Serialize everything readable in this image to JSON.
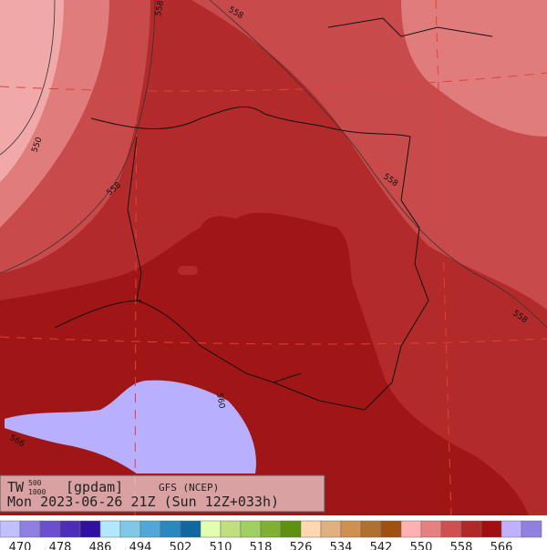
{
  "header": {
    "variable": "TW",
    "superscript": "500",
    "subscript": "1000",
    "unit": "[gpdam]",
    "model": "GFS (NCEP)",
    "time": "Mon 2023-06-26 21Z (Sun 12Z+033h)"
  },
  "contour_labels": [
    "558",
    "558",
    "558",
    "558",
    "558",
    "550",
    "566",
    "560"
  ],
  "colorbar": {
    "colors": [
      "#c0c0ff",
      "#8f7fe0",
      "#6a50d0",
      "#4e2db8",
      "#3010a0",
      "#b0e8ff",
      "#80c8e8",
      "#50a8d8",
      "#2888c0",
      "#1068a0",
      "#e0ffb0",
      "#c0e080",
      "#a0d060",
      "#80b030",
      "#609010",
      "#ffd8b0",
      "#e0b080",
      "#d09050",
      "#b07030",
      "#a05010",
      "#ffb0b0",
      "#e88080",
      "#d05050",
      "#b02828",
      "#a01010",
      "#c0b0ff",
      "#9080e0"
    ],
    "labels": [
      470,
      478,
      486,
      494,
      502,
      510,
      518,
      526,
      534,
      542,
      550,
      558,
      566
    ]
  }
}
